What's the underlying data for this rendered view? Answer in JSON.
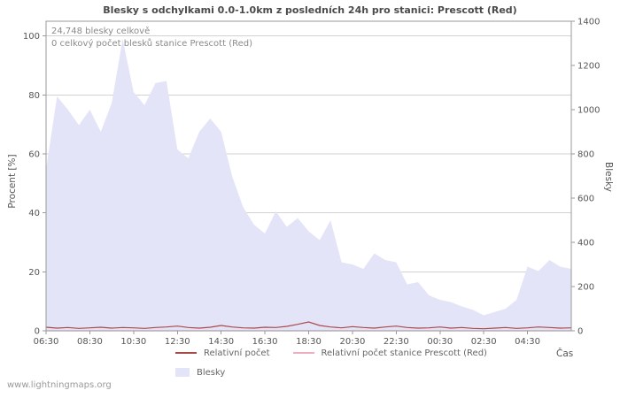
{
  "watermark": "www.lightningmaps.org",
  "chart": {
    "title": "Blesky s odchylkami 0.0-1.0km z posledních 24h pro stanici: Prescott (Red)",
    "ylabel_left": "Procent  [%]",
    "ylabel_right": "Blesky",
    "xlabel": "Čas",
    "annotations": [
      "24,748 blesky celkově",
      "0 celkový počet blesků stanice Prescott (Red)"
    ]
  },
  "legend": {
    "items": [
      {
        "label": "Relativní počet",
        "color": "#a94a4a",
        "type": "line"
      },
      {
        "label": "Relativní počet stanice Prescott (Red)",
        "color": "#edaebe",
        "type": "line"
      },
      {
        "label": "Blesky",
        "color": "#e4e4f9",
        "type": "area"
      }
    ]
  },
  "chart_data": {
    "type": "area",
    "title": "Blesky s odchylkami 0.0-1.0km z posledních 24h pro stanici: Prescott (Red)",
    "xlabel": "Čas",
    "x_ticks": [
      "06:30",
      "08:30",
      "10:30",
      "12:30",
      "14:30",
      "16:30",
      "18:30",
      "20:30",
      "22:30",
      "00:30",
      "02:30",
      "04:30"
    ],
    "x_hours_span": 24,
    "grid": "horizontal",
    "legend_position": "bottom",
    "y_left": {
      "label": "Procent [%]",
      "ticks": [
        0,
        20,
        40,
        60,
        80,
        100
      ],
      "range": [
        0,
        105
      ]
    },
    "y_right": {
      "label": "Blesky",
      "ticks": [
        0,
        200,
        400,
        600,
        800,
        1000,
        1200,
        1400
      ],
      "range": [
        0,
        1400
      ]
    },
    "times": [
      "06:30",
      "07:00",
      "07:30",
      "08:00",
      "08:30",
      "09:00",
      "09:30",
      "10:00",
      "10:30",
      "11:00",
      "11:30",
      "12:00",
      "12:30",
      "13:00",
      "13:30",
      "14:00",
      "14:30",
      "15:00",
      "15:30",
      "16:00",
      "16:30",
      "17:00",
      "17:30",
      "18:00",
      "18:30",
      "19:00",
      "19:30",
      "20:00",
      "20:30",
      "21:00",
      "21:30",
      "22:00",
      "22:30",
      "23:00",
      "23:30",
      "00:00",
      "00:30",
      "01:00",
      "01:30",
      "02:00",
      "02:30",
      "03:00",
      "03:30",
      "04:00",
      "04:30",
      "05:00",
      "05:30",
      "06:00",
      "06:30"
    ],
    "series": [
      {
        "name": "Blesky",
        "type": "area",
        "axis": "right",
        "color": "#e4e4f9",
        "values": [
          730,
          1060,
          1000,
          930,
          1000,
          900,
          1030,
          1320,
          1080,
          1020,
          1120,
          1130,
          820,
          780,
          900,
          960,
          900,
          700,
          560,
          480,
          440,
          540,
          470,
          510,
          450,
          410,
          500,
          310,
          300,
          280,
          350,
          320,
          310,
          210,
          220,
          160,
          140,
          130,
          110,
          95,
          70,
          85,
          100,
          140,
          290,
          270,
          320,
          290,
          280
        ]
      },
      {
        "name": "Relativní počet",
        "type": "line",
        "axis": "left",
        "color": "#a94a4a",
        "values": [
          1.2,
          0.9,
          1.1,
          0.8,
          1.0,
          1.2,
          0.9,
          1.1,
          1.0,
          0.8,
          1.1,
          1.3,
          1.6,
          1.1,
          0.9,
          1.2,
          1.8,
          1.3,
          1.0,
          0.9,
          1.2,
          1.1,
          1.5,
          2.2,
          3.0,
          1.8,
          1.3,
          1.0,
          1.4,
          1.1,
          0.9,
          1.3,
          1.6,
          1.1,
          0.9,
          1.0,
          1.3,
          0.9,
          1.1,
          0.8,
          0.7,
          0.9,
          1.1,
          0.8,
          1.0,
          1.3,
          1.1,
          0.9,
          1.0
        ]
      },
      {
        "name": "Relativní počet stanice Prescott (Red)",
        "type": "line",
        "axis": "left",
        "color": "#edaebe",
        "values": [
          0,
          0,
          0,
          0,
          0,
          0,
          0,
          0,
          0,
          0,
          0,
          0,
          0,
          0,
          0,
          0,
          0,
          0,
          0,
          0,
          0,
          0,
          0,
          0,
          0,
          0,
          0,
          0,
          0,
          0,
          0,
          0,
          0,
          0,
          0,
          0,
          0,
          0,
          0,
          0,
          0,
          0,
          0,
          0,
          0,
          0,
          0,
          0,
          0
        ]
      }
    ],
    "totals": {
      "blesky_celkove": 24748,
      "stanice_celkem": 0
    }
  }
}
